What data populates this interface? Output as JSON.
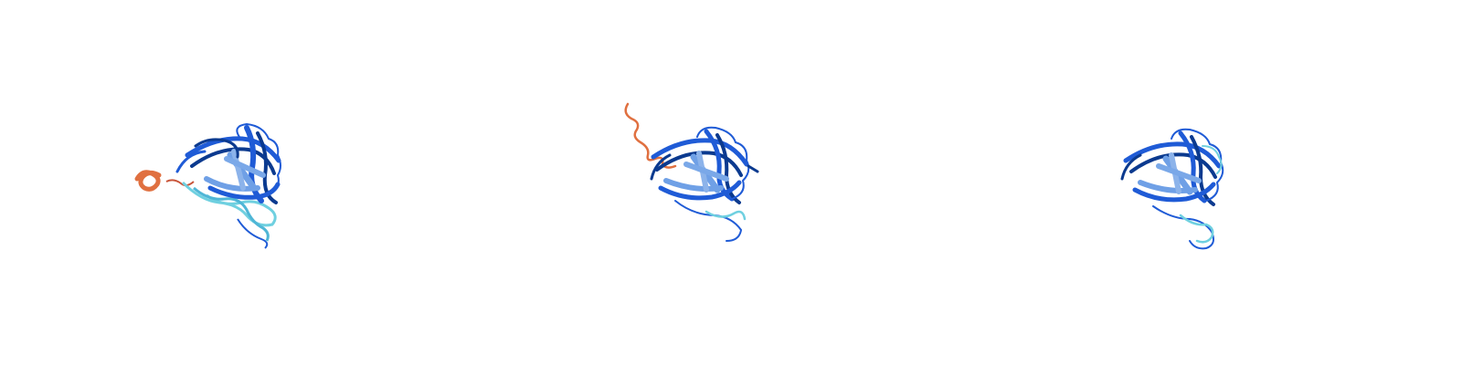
{
  "image": {
    "description_free": true,
    "panels": [
      {
        "view": "front",
        "coil_color": "#e07040"
      },
      {
        "view": "side",
        "coil_color": "#e07040"
      },
      {
        "view": "top",
        "coil_color": null
      }
    ],
    "colors": {
      "background": "#ffffff",
      "core_dark": "#0b3a8f",
      "core": "#1f5bd6",
      "strand_light": "#6fa0e6",
      "loop_cyan": "#6fd0e0",
      "coil_orange": "#e07040"
    }
  }
}
